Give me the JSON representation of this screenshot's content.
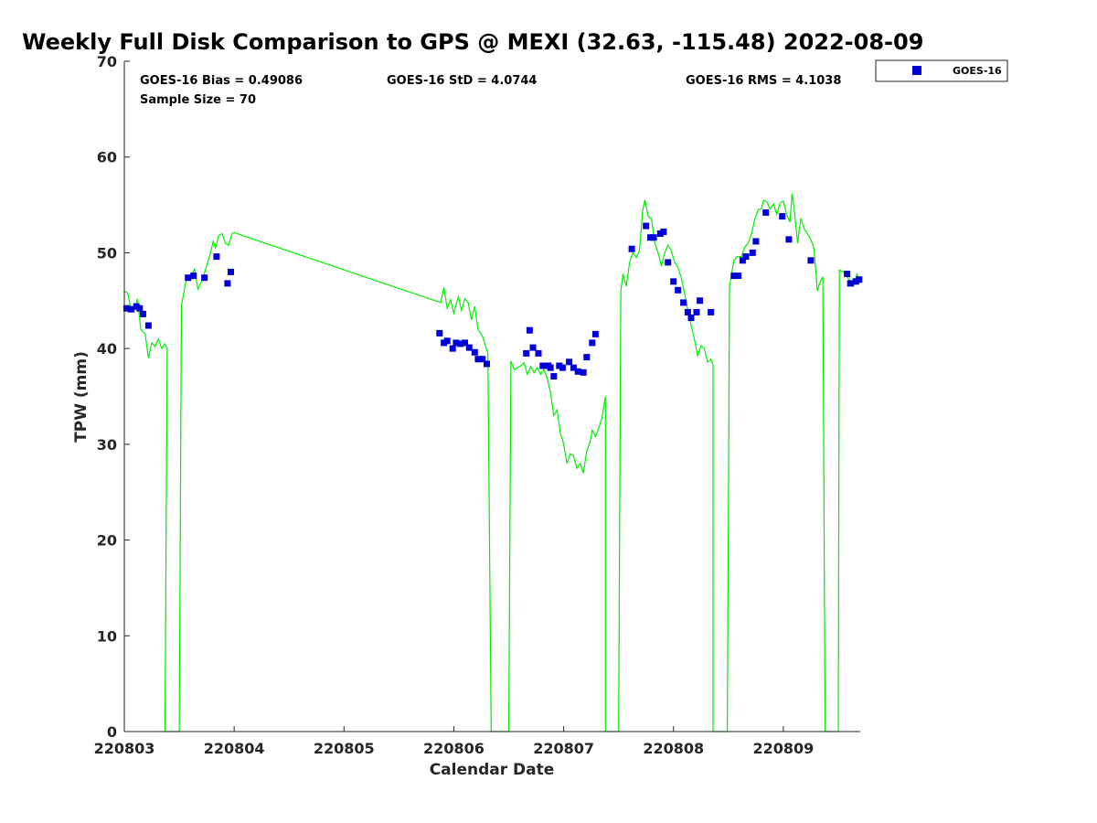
{
  "chart_data": {
    "type": "scatter",
    "title": "Weekly Full Disk Comparison to GPS @ MEXI (32.63, -115.48) 2022-08-09",
    "xlabel": "Calendar Date",
    "ylabel": "TPW (mm)",
    "xlim": [
      0,
      6.7
    ],
    "ylim": [
      0,
      70
    ],
    "x_tick_values": [
      0,
      1,
      2,
      3,
      4,
      5,
      6
    ],
    "x_tick_labels": [
      "220803",
      "220804",
      "220805",
      "220806",
      "220807",
      "220808",
      "220809"
    ],
    "y_ticks": [
      0,
      10,
      20,
      30,
      40,
      50,
      60,
      70
    ],
    "grid": false,
    "legend": {
      "position": "top-right",
      "entries": [
        "GOES-16"
      ]
    },
    "stats": {
      "bias": "GOES-16 Bias = 0.49086",
      "std": "GOES-16 StD = 4.0744",
      "rms": "GOES-16 RMS = 4.1038",
      "sample": "Sample Size = 70"
    },
    "series": [
      {
        "name": "GOES-16",
        "kind": "scatter",
        "color": "#0000d6",
        "marker": "square",
        "points": [
          [
            0.02,
            44.2
          ],
          [
            0.06,
            44.1
          ],
          [
            0.11,
            44.4
          ],
          [
            0.14,
            44.2
          ],
          [
            0.17,
            43.6
          ],
          [
            0.22,
            42.4
          ],
          [
            0.58,
            47.4
          ],
          [
            0.63,
            47.6
          ],
          [
            0.73,
            47.4
          ],
          [
            0.84,
            49.6
          ],
          [
            0.94,
            46.8
          ],
          [
            0.97,
            48.0
          ],
          [
            2.87,
            41.6
          ],
          [
            2.91,
            40.6
          ],
          [
            2.94,
            40.8
          ],
          [
            2.99,
            40.0
          ],
          [
            3.02,
            40.6
          ],
          [
            3.06,
            40.5
          ],
          [
            3.1,
            40.6
          ],
          [
            3.14,
            40.1
          ],
          [
            3.19,
            39.6
          ],
          [
            3.22,
            38.9
          ],
          [
            3.26,
            38.9
          ],
          [
            3.3,
            38.4
          ],
          [
            3.66,
            39.5
          ],
          [
            3.69,
            41.9
          ],
          [
            3.72,
            40.1
          ],
          [
            3.77,
            39.5
          ],
          [
            3.81,
            38.2
          ],
          [
            3.86,
            38.2
          ],
          [
            3.88,
            38.0
          ],
          [
            3.91,
            37.1
          ],
          [
            3.96,
            38.2
          ],
          [
            3.99,
            38.0
          ],
          [
            4.05,
            38.6
          ],
          [
            4.09,
            38.0
          ],
          [
            4.13,
            37.6
          ],
          [
            4.18,
            37.5
          ],
          [
            4.21,
            39.1
          ],
          [
            4.26,
            40.6
          ],
          [
            4.29,
            41.5
          ],
          [
            4.62,
            50.4
          ],
          [
            4.75,
            52.8
          ],
          [
            4.79,
            51.6
          ],
          [
            4.82,
            51.6
          ],
          [
            4.88,
            52.0
          ],
          [
            4.91,
            52.2
          ],
          [
            4.95,
            49.0
          ],
          [
            5.0,
            47.0
          ],
          [
            5.04,
            46.1
          ],
          [
            5.09,
            44.8
          ],
          [
            5.13,
            43.8
          ],
          [
            5.16,
            43.2
          ],
          [
            5.21,
            43.8
          ],
          [
            5.24,
            45.0
          ],
          [
            5.34,
            43.8
          ],
          [
            5.55,
            47.6
          ],
          [
            5.59,
            47.6
          ],
          [
            5.63,
            49.2
          ],
          [
            5.66,
            49.6
          ],
          [
            5.72,
            50.0
          ],
          [
            5.75,
            51.2
          ],
          [
            5.84,
            54.2
          ],
          [
            5.99,
            53.8
          ],
          [
            6.05,
            51.4
          ],
          [
            6.25,
            49.2
          ],
          [
            6.58,
            47.8
          ],
          [
            6.61,
            46.8
          ],
          [
            6.66,
            47.0
          ],
          [
            6.69,
            47.2
          ]
        ]
      },
      {
        "name": "GPS",
        "kind": "line",
        "color": "#00ee00",
        "points": [
          [
            0.0,
            46.0
          ],
          [
            0.03,
            45.8
          ],
          [
            0.06,
            44.2
          ],
          [
            0.09,
            43.8
          ],
          [
            0.12,
            45.2
          ],
          [
            0.15,
            42.0
          ],
          [
            0.19,
            41.5
          ],
          [
            0.22,
            39.0
          ],
          [
            0.25,
            40.6
          ],
          [
            0.28,
            40.2
          ],
          [
            0.31,
            41.0
          ],
          [
            0.34,
            40.0
          ],
          [
            0.37,
            40.5
          ],
          [
            0.39,
            40.0
          ],
          [
            0.37,
            0.0
          ],
          [
            0.5,
            0.0
          ],
          [
            0.52,
            44.5
          ],
          [
            0.56,
            47.0
          ],
          [
            0.6,
            47.5
          ],
          [
            0.64,
            48.3
          ],
          [
            0.67,
            46.2
          ],
          [
            0.71,
            47.2
          ],
          [
            0.75,
            48.6
          ],
          [
            0.78,
            49.8
          ],
          [
            0.81,
            51.2
          ],
          [
            0.83,
            50.5
          ],
          [
            0.86,
            51.8
          ],
          [
            0.89,
            52.0
          ],
          [
            0.92,
            51.0
          ],
          [
            0.95,
            50.8
          ],
          [
            0.98,
            52.0
          ],
          [
            1.0,
            52.1
          ],
          [
            2.88,
            44.8
          ],
          [
            2.91,
            46.4
          ],
          [
            2.94,
            44.2
          ],
          [
            2.97,
            45.1
          ],
          [
            3.0,
            43.7
          ],
          [
            3.04,
            45.4
          ],
          [
            3.07,
            44.0
          ],
          [
            3.1,
            45.2
          ],
          [
            3.13,
            44.8
          ],
          [
            3.16,
            43.0
          ],
          [
            3.19,
            44.4
          ],
          [
            3.22,
            42.0
          ],
          [
            3.26,
            41.3
          ],
          [
            3.29,
            40.2
          ],
          [
            3.31,
            39.5
          ],
          [
            3.34,
            0.0
          ],
          [
            3.5,
            0.0
          ],
          [
            3.52,
            38.7
          ],
          [
            3.55,
            37.8
          ],
          [
            3.58,
            38.0
          ],
          [
            3.61,
            38.2
          ],
          [
            3.64,
            38.5
          ],
          [
            3.67,
            37.3
          ],
          [
            3.7,
            38.1
          ],
          [
            3.73,
            37.5
          ],
          [
            3.76,
            38.0
          ],
          [
            3.79,
            37.3
          ],
          [
            3.82,
            37.8
          ],
          [
            3.85,
            36.9
          ],
          [
            3.88,
            35.4
          ],
          [
            3.91,
            33.0
          ],
          [
            3.94,
            33.6
          ],
          [
            3.97,
            31.2
          ],
          [
            4.0,
            30.0
          ],
          [
            4.03,
            28.0
          ],
          [
            4.06,
            29.0
          ],
          [
            4.09,
            28.8
          ],
          [
            4.12,
            27.5
          ],
          [
            4.15,
            28.0
          ],
          [
            4.18,
            27.0
          ],
          [
            4.21,
            29.3
          ],
          [
            4.24,
            30.2
          ],
          [
            4.26,
            31.5
          ],
          [
            4.29,
            30.8
          ],
          [
            4.32,
            31.7
          ],
          [
            4.35,
            32.8
          ],
          [
            4.38,
            35.0
          ],
          [
            4.38,
            0.0
          ],
          [
            4.5,
            0.0
          ],
          [
            4.52,
            46.0
          ],
          [
            4.54,
            47.8
          ],
          [
            4.57,
            46.5
          ],
          [
            4.6,
            49.0
          ],
          [
            4.63,
            50.0
          ],
          [
            4.66,
            49.5
          ],
          [
            4.69,
            50.2
          ],
          [
            4.72,
            54.5
          ],
          [
            4.74,
            55.5
          ],
          [
            4.77,
            53.8
          ],
          [
            4.8,
            53.5
          ],
          [
            4.83,
            51.0
          ],
          [
            4.86,
            50.0
          ],
          [
            4.89,
            48.6
          ],
          [
            4.92,
            50.0
          ],
          [
            4.95,
            50.8
          ],
          [
            4.98,
            50.2
          ],
          [
            5.01,
            49.0
          ],
          [
            5.04,
            48.5
          ],
          [
            5.07,
            47.4
          ],
          [
            5.1,
            45.8
          ],
          [
            5.13,
            44.0
          ],
          [
            5.16,
            42.4
          ],
          [
            5.19,
            41.0
          ],
          [
            5.22,
            39.2
          ],
          [
            5.25,
            40.3
          ],
          [
            5.28,
            40.0
          ],
          [
            5.31,
            38.6
          ],
          [
            5.34,
            38.9
          ],
          [
            5.36,
            38.3
          ],
          [
            5.36,
            0.0
          ],
          [
            5.49,
            0.0
          ],
          [
            5.51,
            46.5
          ],
          [
            5.55,
            49.2
          ],
          [
            5.58,
            49.6
          ],
          [
            5.62,
            49.6
          ],
          [
            5.65,
            50.6
          ],
          [
            5.68,
            51.0
          ],
          [
            5.71,
            52.0
          ],
          [
            5.74,
            53.5
          ],
          [
            5.77,
            54.5
          ],
          [
            5.8,
            54.6
          ],
          [
            5.82,
            55.5
          ],
          [
            5.85,
            55.3
          ],
          [
            5.88,
            54.6
          ],
          [
            5.91,
            55.1
          ],
          [
            5.94,
            54.0
          ],
          [
            5.97,
            55.2
          ],
          [
            6.0,
            55.4
          ],
          [
            6.03,
            54.0
          ],
          [
            6.06,
            53.2
          ],
          [
            6.08,
            56.2
          ],
          [
            6.1,
            54.4
          ],
          [
            6.13,
            51.0
          ],
          [
            6.16,
            53.6
          ],
          [
            6.19,
            52.5
          ],
          [
            6.22,
            52.0
          ],
          [
            6.25,
            51.4
          ],
          [
            6.28,
            50.4
          ],
          [
            6.31,
            46.0
          ],
          [
            6.33,
            46.8
          ],
          [
            6.36,
            47.5
          ],
          [
            6.38,
            0.0
          ],
          [
            6.5,
            0.0
          ],
          [
            6.51,
            48.2
          ],
          [
            6.55,
            48.0
          ],
          [
            6.58,
            47.5
          ],
          [
            6.61,
            47.0
          ],
          [
            6.64,
            46.5
          ],
          [
            6.67,
            47.8
          ],
          [
            6.7,
            46.8
          ]
        ]
      }
    ]
  }
}
